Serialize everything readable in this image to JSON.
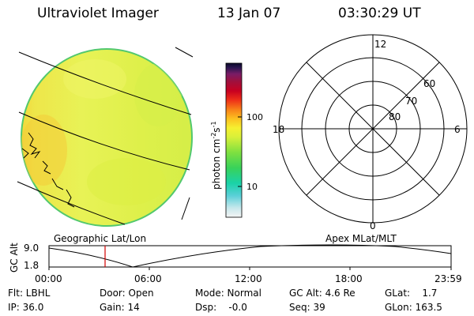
{
  "header": {
    "instrument": "Ultraviolet Imager",
    "date": "13 Jan 07",
    "time": "03:30:29 UT"
  },
  "colorbar": {
    "unit_label": "photon cm",
    "unit_exp1": "-2",
    "unit_s": "s",
    "unit_exp2": "-1",
    "tick_high": "100",
    "tick_low": "10"
  },
  "polar_plot": {
    "mlt_labels": {
      "top": "12",
      "left": "18",
      "right": "6",
      "bottom": "0"
    },
    "lat_labels": [
      "60",
      "70",
      "80"
    ]
  },
  "panel_titles": {
    "left": "Geographic Lat/Lon",
    "right": "Apex MLat/MLT"
  },
  "altitude_plot": {
    "axis_label": "GC Alt",
    "y_max": "9.0",
    "y_min": "1.8",
    "x_ticks": [
      "00:00",
      "06:00",
      "12:00",
      "18:00",
      "23:59"
    ],
    "marker_time": "03:30:29"
  },
  "info": {
    "flt": "Flt: LBHL",
    "ip": "IP: 36.0",
    "door": "Door: Open",
    "gain": "Gain: 14",
    "mode": "Mode: Normal",
    "dsp": "Dsp:    -0.0",
    "gc_alt": "GC Alt: 4.6 Re",
    "seq": "Seq: 39",
    "glat": "GLat:    1.7",
    "glon": "GLon: 163.5"
  },
  "colors": {
    "disk_fill": "#e2f14a",
    "disk_edge": "#52c86e",
    "marker": "#d10000"
  }
}
